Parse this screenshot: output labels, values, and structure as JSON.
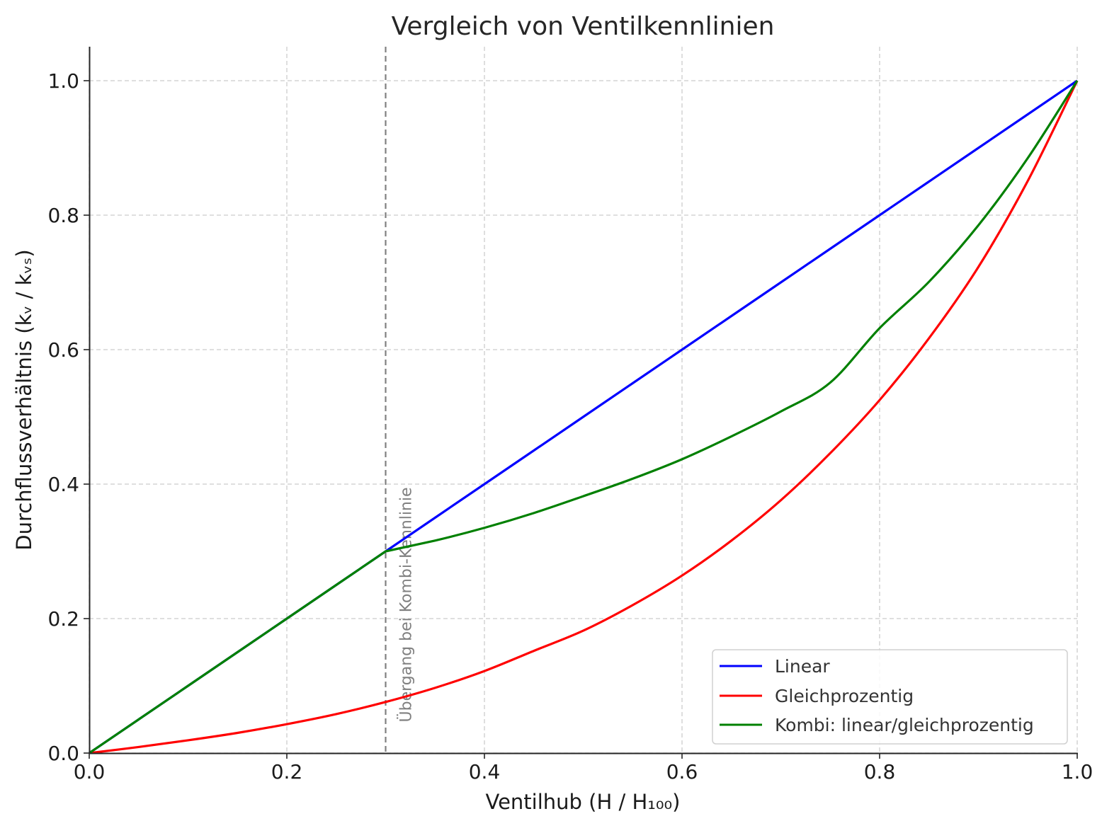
{
  "chart_data": {
    "type": "line",
    "title": "Vergleich von Ventilkennlinien",
    "xlabel": "Ventilhub (H / H₁₀₀)",
    "ylabel": "Durchflussverhältnis (kᵥ / kᵥₛ)",
    "xlim": [
      0.0,
      1.0
    ],
    "ylim": [
      0.0,
      1.05
    ],
    "xticks": [
      0.0,
      0.2,
      0.4,
      0.6,
      0.8,
      1.0
    ],
    "xtick_labels": [
      "0.0",
      "0.2",
      "0.4",
      "0.6",
      "0.8",
      "1.0"
    ],
    "yticks": [
      0.0,
      0.2,
      0.4,
      0.6,
      0.8,
      1.0
    ],
    "ytick_labels": [
      "0.0",
      "0.2",
      "0.4",
      "0.6",
      "0.8",
      "1.0"
    ],
    "grid": true,
    "legend_position": "lower right",
    "x": [
      0.0,
      0.05,
      0.1,
      0.15,
      0.2,
      0.25,
      0.3,
      0.35,
      0.4,
      0.45,
      0.5,
      0.55,
      0.6,
      0.65,
      0.7,
      0.75,
      0.8,
      0.85,
      0.9,
      0.95,
      1.0
    ],
    "series": [
      {
        "name": "Linear",
        "color": "#0000ff",
        "values": [
          0.0,
          0.05,
          0.1,
          0.15,
          0.2,
          0.25,
          0.3,
          0.35,
          0.4,
          0.45,
          0.5,
          0.55,
          0.6,
          0.65,
          0.7,
          0.75,
          0.8,
          0.85,
          0.9,
          0.95,
          1.0
        ]
      },
      {
        "name": "Gleichprozentig",
        "color": "#ff0000",
        "values": [
          0.0,
          0.009,
          0.019,
          0.03,
          0.043,
          0.058,
          0.076,
          0.097,
          0.122,
          0.152,
          0.182,
          0.22,
          0.264,
          0.316,
          0.376,
          0.446,
          0.525,
          0.617,
          0.723,
          0.851,
          1.0
        ]
      },
      {
        "name": "Kombi: linear/gleichprozentig",
        "color": "#008000",
        "values": [
          0.0,
          0.05,
          0.1,
          0.15,
          0.2,
          0.25,
          0.3,
          0.316,
          0.335,
          0.357,
          0.382,
          0.408,
          0.437,
          0.471,
          0.508,
          0.551,
          0.632,
          0.701,
          0.785,
          0.885,
          1.0
        ]
      }
    ],
    "annotations": [
      {
        "type": "vline",
        "x": 0.3,
        "style": "dashed",
        "color": "#808080"
      },
      {
        "type": "text",
        "text": "Übergang bei Kombi-Kennlinie",
        "x": 0.31,
        "y": 0.05,
        "rotation": 90,
        "color": "#808080"
      }
    ]
  }
}
